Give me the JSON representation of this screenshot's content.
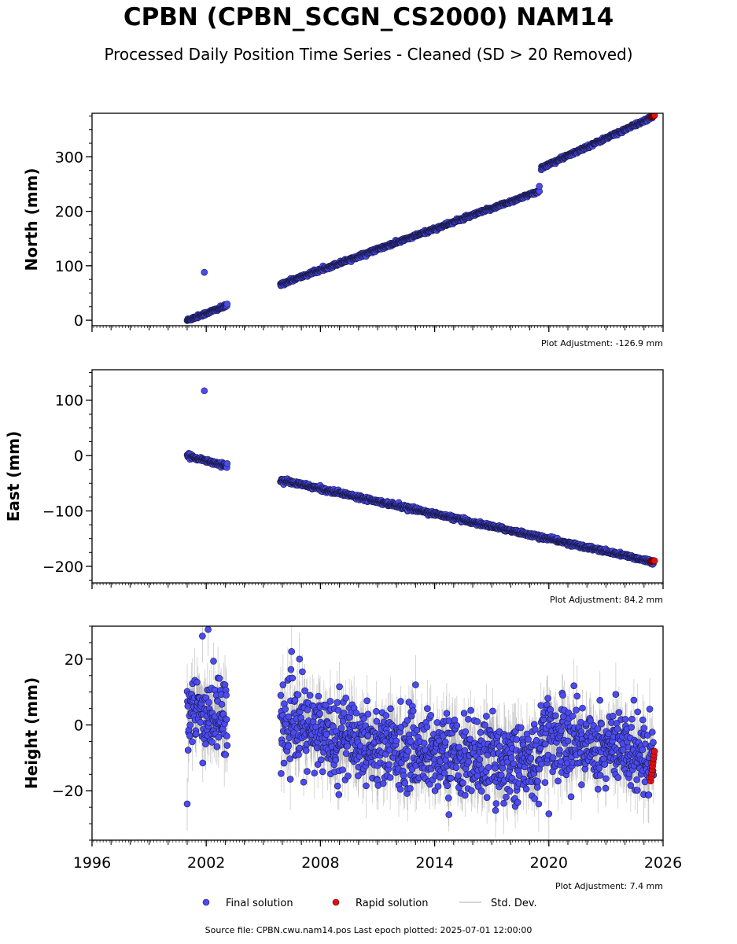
{
  "title": "CPBN (CPBN_SCGN_CS2000) NAM14",
  "subtitle": "Processed Daily Position Time Series - Cleaned (SD > 20 Removed)",
  "footer": "Source file: CPBN.cwu.nam14.pos  Last epoch plotted: 2025-07-01 12:00:00",
  "colors": {
    "final": "#4b4bf0",
    "final_edge": "#1a1a4a",
    "rapid": "#e01010",
    "std": "#9a9a9a"
  },
  "chart_data": {
    "type": "scatter",
    "x_axis": {
      "xlim": [
        1996,
        2026
      ],
      "major_ticks": [
        1996,
        2002,
        2008,
        2014,
        2020,
        2026
      ],
      "tick_labels": [
        "1996",
        "2002",
        "2008",
        "2014",
        "2020",
        "2026"
      ]
    },
    "legend": {
      "placement": "bottom-center",
      "entries": [
        "Final solution",
        "Rapid solution",
        "Std. Dev."
      ]
    },
    "panels": [
      {
        "name": "north",
        "ylabel": "North (mm)",
        "ylim": [
          -10,
          380
        ],
        "yticks": [
          0,
          100,
          200,
          300
        ],
        "ytick_labels": [
          "0",
          "100",
          "200",
          "300"
        ],
        "adjustment": "Plot Adjustment: -126.9 mm",
        "trend_segments": [
          {
            "x": [
              2001.0,
              2003.1
            ],
            "y": [
              0,
              27
            ]
          },
          {
            "x": [
              2005.9,
              2019.5
            ],
            "y": [
              66,
              237
            ]
          },
          {
            "x": [
              2019.6,
              2025.5
            ],
            "y": [
              280,
              374
            ]
          }
        ],
        "outliers": [
          {
            "x": 2001.9,
            "y": 88
          },
          {
            "x": 2019.5,
            "y": 246
          }
        ],
        "noise": 1.5,
        "rapid": {
          "x": [
            2025.4,
            2025.55
          ],
          "y": [
            373,
            376
          ]
        }
      },
      {
        "name": "east",
        "ylabel": "East (mm)",
        "ylim": [
          -230,
          155
        ],
        "yticks": [
          -200,
          -100,
          0,
          100
        ],
        "ytick_labels": [
          "−200",
          "−100",
          "0",
          "100"
        ],
        "adjustment": "Plot Adjustment: 84.2 mm",
        "trend_segments": [
          {
            "x": [
              2001.0,
              2003.1
            ],
            "y": [
              0,
              -19
            ]
          },
          {
            "x": [
              2005.9,
              2025.5
            ],
            "y": [
              -44,
              -192
            ]
          }
        ],
        "outliers": [
          {
            "x": 2001.9,
            "y": 117
          }
        ],
        "noise": 1.8,
        "rapid": {
          "x": [
            2025.35,
            2025.55
          ],
          "y": [
            -191,
            -190
          ]
        }
      },
      {
        "name": "height",
        "ylabel": "Height (mm)",
        "ylim": [
          -35,
          30
        ],
        "yticks": [
          -20,
          0,
          20
        ],
        "ytick_labels": [
          "−20",
          "0",
          "20"
        ],
        "adjustment": "Plot Adjustment: 7.4 mm",
        "trend_segments": [
          {
            "x": [
              2001.0,
              2003.1
            ],
            "y": [
              3,
              3
            ]
          },
          {
            "x": [
              2005.9,
              2010.5
            ],
            "y": [
              0,
              -5
            ]
          },
          {
            "x": [
              2010.5,
              2019.5
            ],
            "y": [
              -6,
              -12
            ]
          },
          {
            "x": [
              2019.5,
              2025.5
            ],
            "y": [
              -3,
              -9
            ]
          }
        ],
        "outliers": [
          {
            "x": 2001.0,
            "y": -24
          },
          {
            "x": 2001.8,
            "y": 27
          },
          {
            "x": 2002.1,
            "y": 29
          },
          {
            "x": 2006.9,
            "y": 20
          },
          {
            "x": 2020.0,
            "y": -27
          }
        ],
        "noise": 6,
        "rapid": {
          "x": [
            2025.35,
            2025.55
          ],
          "y": [
            -17,
            -8
          ]
        }
      }
    ]
  }
}
